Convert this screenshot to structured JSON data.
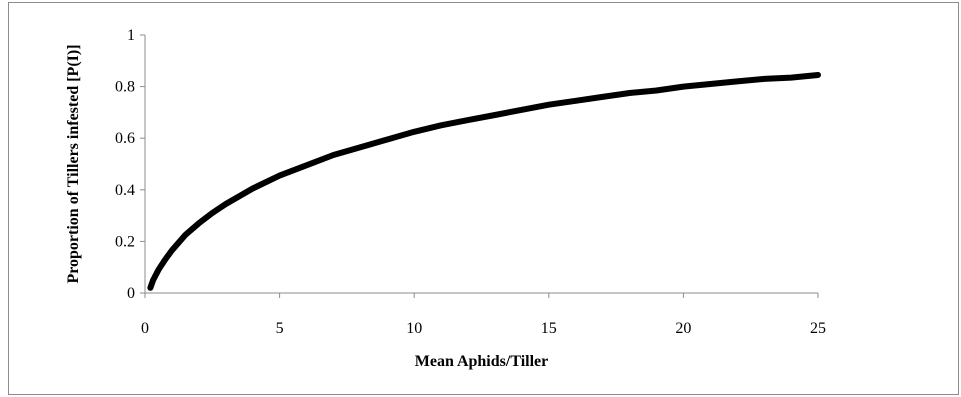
{
  "chart_data": {
    "type": "line",
    "title": "",
    "xlabel": "Mean Aphids/Tiller",
    "ylabel": "Proportion of Tillers infested [P(I)]",
    "xlim": [
      0,
      25
    ],
    "ylim": [
      0,
      1
    ],
    "x_ticks": [
      0,
      5,
      10,
      15,
      20,
      25
    ],
    "y_ticks": [
      0,
      0.2,
      0.4,
      0.6,
      0.8,
      1
    ],
    "x_tick_labels": [
      "0",
      "5",
      "10",
      "15",
      "20",
      "25"
    ],
    "y_tick_labels": [
      "0",
      "0.2",
      "0.4",
      "0.6",
      "0.8",
      "1"
    ],
    "grid": false,
    "legend": "none",
    "line_color": "#000000",
    "series": [
      {
        "x": [
          0.2,
          0.3,
          0.5,
          0.75,
          1,
          1.5,
          2,
          2.5,
          3,
          4,
          5,
          6,
          7,
          8,
          9,
          10,
          11,
          12,
          13,
          14,
          15,
          16,
          17,
          18,
          19,
          20,
          21,
          22,
          23,
          24,
          25
        ],
        "values": [
          0.02,
          0.05,
          0.09,
          0.13,
          0.165,
          0.225,
          0.27,
          0.31,
          0.345,
          0.405,
          0.455,
          0.495,
          0.535,
          0.565,
          0.595,
          0.625,
          0.65,
          0.67,
          0.69,
          0.71,
          0.73,
          0.745,
          0.76,
          0.775,
          0.785,
          0.8,
          0.81,
          0.82,
          0.83,
          0.835,
          0.845
        ]
      }
    ]
  }
}
